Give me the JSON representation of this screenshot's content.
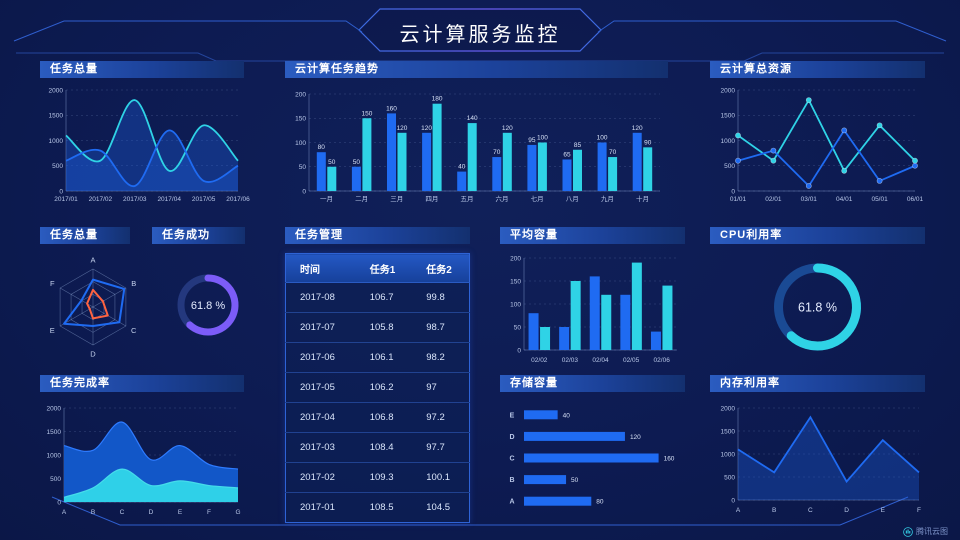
{
  "header": {
    "title": "云计算服务监控"
  },
  "watermark": {
    "label": "腾讯云图"
  },
  "colors": {
    "bg": "#0d1b52",
    "blue": "#1f6bf2",
    "cyan": "#2fd3e6",
    "purple": "#7c5cf8",
    "orange": "#ff6340",
    "purpleTrack": "#24387e",
    "cyanTrack": "#1a4a94",
    "solidBlue": "#1257c8",
    "solidCyan": "#2fd0e8",
    "areaBlue": "rgba(30,95,220,0.35)",
    "axis": "#b9c7e8",
    "grid": "rgba(170,195,245,0.28)",
    "frame": "#2f5ece",
    "label": "#d7e1f6",
    "donutText": "#e6edff"
  },
  "panels": {
    "taskTotalLine": {
      "title": "任务总量"
    },
    "trend": {
      "title": "云计算任务趋势"
    },
    "resource": {
      "title": "云计算总资源"
    },
    "radar": {
      "title": "任务总量"
    },
    "success": {
      "title": "任务成功"
    },
    "management": {
      "title": "任务管理"
    },
    "avgCapacity": {
      "title": "平均容量"
    },
    "cpu": {
      "title": "CPU利用率"
    },
    "completion": {
      "title": "任务完成率"
    },
    "storage": {
      "title": "存储容量"
    },
    "memory": {
      "title": "内存利用率"
    }
  },
  "chart_data": [
    {
      "id": "task_total_line",
      "type": "line",
      "title": "任务总量",
      "smooth": true,
      "area": true,
      "markers": false,
      "x": [
        "2017/01",
        "2017/02",
        "2017/03",
        "2017/04",
        "2017/05",
        "2017/06"
      ],
      "ylim": [
        0,
        2000
      ],
      "yticks": [
        0,
        500,
        1000,
        1500,
        2000
      ],
      "grid": "dashed",
      "series": [
        {
          "name": "cyan-series",
          "color": "cyan",
          "values": [
            1100,
            600,
            1800,
            400,
            1300,
            600
          ]
        },
        {
          "name": "blue-series",
          "color": "blue",
          "values": [
            600,
            800,
            100,
            1200,
            200,
            500
          ]
        }
      ]
    },
    {
      "id": "trend",
      "type": "bar",
      "title": "云计算任务趋势",
      "categories": [
        "一月",
        "二月",
        "三月",
        "四月",
        "五月",
        "六月",
        "七月",
        "八月",
        "九月",
        "十月"
      ],
      "ylim": [
        0,
        200
      ],
      "yticks": [
        0,
        50,
        100,
        150,
        200
      ],
      "value_labels": true,
      "series": [
        {
          "name": "任务1",
          "color": "blue",
          "values": [
            80,
            50,
            160,
            120,
            40,
            70,
            95,
            65,
            100,
            120
          ]
        },
        {
          "name": "任务2",
          "color": "cyan",
          "values": [
            50,
            150,
            120,
            180,
            140,
            120,
            100,
            85,
            70,
            90
          ]
        }
      ]
    },
    {
      "id": "resource",
      "type": "line",
      "title": "云计算总资源",
      "smooth": false,
      "area": false,
      "markers": true,
      "x": [
        "01/01",
        "02/01",
        "03/01",
        "04/01",
        "05/01",
        "06/01"
      ],
      "ylim": [
        0,
        2000
      ],
      "yticks": [
        0,
        500,
        1000,
        1500,
        2000
      ],
      "grid": "dashed",
      "series": [
        {
          "name": "cyan-series",
          "color": "cyan",
          "values": [
            1100,
            600,
            1800,
            400,
            1300,
            600
          ]
        },
        {
          "name": "blue-series",
          "color": "blue",
          "values": [
            600,
            800,
            100,
            1200,
            200,
            500
          ]
        }
      ]
    },
    {
      "id": "radar",
      "type": "radar",
      "title": "任务总量",
      "axes": [
        "A",
        "B",
        "C",
        "D",
        "E",
        "F"
      ],
      "max": 100,
      "levels": 3,
      "series": [
        {
          "name": "blue-polygon",
          "color": "blue",
          "values": [
            72,
            95,
            80,
            50,
            88,
            35
          ]
        },
        {
          "name": "orange-polygon",
          "color": "orange",
          "values": [
            45,
            30,
            45,
            30,
            10,
            18
          ]
        }
      ]
    },
    {
      "id": "success",
      "type": "donut",
      "title": "任务成功",
      "value": 61.8,
      "label": "61.8 %",
      "color": "purple",
      "track": "purpleTrack"
    },
    {
      "id": "management",
      "type": "table",
      "title": "任务管理",
      "headers": [
        "时间",
        "任务1",
        "任务2"
      ],
      "rows": [
        [
          "2017-08",
          "106.7",
          "99.8"
        ],
        [
          "2017-07",
          "105.8",
          "98.7"
        ],
        [
          "2017-06",
          "106.1",
          "98.2"
        ],
        [
          "2017-05",
          "106.2",
          "97"
        ],
        [
          "2017-04",
          "106.8",
          "97.2"
        ],
        [
          "2017-03",
          "108.4",
          "97.7"
        ],
        [
          "2017-02",
          "109.3",
          "100.1"
        ],
        [
          "2017-01",
          "108.5",
          "104.5"
        ]
      ]
    },
    {
      "id": "avg_capacity",
      "type": "bar",
      "title": "平均容量",
      "categories": [
        "02/02",
        "02/03",
        "02/04",
        "02/05",
        "02/06"
      ],
      "ylim": [
        0,
        200
      ],
      "yticks": [
        0,
        50,
        100,
        150,
        200
      ],
      "value_labels": false,
      "series": [
        {
          "name": "blue-series",
          "color": "blue",
          "values": [
            80,
            50,
            160,
            120,
            40
          ]
        },
        {
          "name": "cyan-series",
          "color": "cyan",
          "values": [
            50,
            150,
            120,
            190,
            140
          ]
        }
      ]
    },
    {
      "id": "cpu",
      "type": "donut",
      "title": "CPU利用率",
      "value": 61.8,
      "label": "61.8 %",
      "color": "cyan",
      "track": "cyanTrack"
    },
    {
      "id": "completion",
      "type": "stacked_area",
      "title": "任务完成率",
      "x": [
        "A",
        "B",
        "C",
        "D",
        "E",
        "F",
        "G"
      ],
      "ylim": [
        0,
        2000
      ],
      "yticks": [
        0,
        500,
        1000,
        1500,
        2000
      ],
      "series": [
        {
          "name": "blue-area",
          "color": "solidBlue",
          "edge": "#2e7bff",
          "values": [
            1200,
            1100,
            1700,
            900,
            1200,
            800,
            700
          ]
        },
        {
          "name": "cyan-area",
          "color": "solidCyan",
          "edge": "#45dcea",
          "values": [
            100,
            300,
            700,
            350,
            450,
            350,
            300
          ]
        }
      ]
    },
    {
      "id": "storage",
      "type": "hbar",
      "title": "存储容量",
      "categories": [
        "E",
        "D",
        "C",
        "B",
        "A"
      ],
      "values": [
        40,
        120,
        160,
        50,
        80
      ],
      "xmax": 170,
      "color": "blue",
      "value_labels": true
    },
    {
      "id": "memory",
      "type": "line",
      "title": "内存利用率",
      "smooth": false,
      "area": true,
      "markers": false,
      "x": [
        "A",
        "B",
        "C",
        "D",
        "E",
        "F"
      ],
      "ylim": [
        0,
        2000
      ],
      "yticks": [
        0,
        500,
        1000,
        1500,
        2000
      ],
      "grid": "dashed",
      "series": [
        {
          "name": "blue-series",
          "color": "blue",
          "values": [
            1100,
            600,
            1800,
            400,
            1300,
            600
          ]
        }
      ]
    }
  ]
}
